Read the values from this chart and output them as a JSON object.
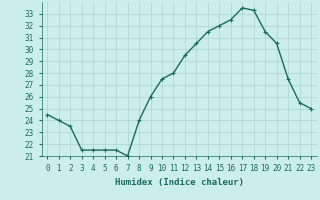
{
  "x": [
    0,
    1,
    2,
    3,
    4,
    5,
    6,
    7,
    8,
    9,
    10,
    11,
    12,
    13,
    14,
    15,
    16,
    17,
    18,
    19,
    20,
    21,
    22,
    23
  ],
  "y": [
    24.5,
    24.0,
    23.5,
    21.5,
    21.5,
    21.5,
    21.5,
    21.0,
    24.0,
    26.0,
    27.5,
    28.0,
    29.5,
    30.5,
    31.5,
    32.0,
    32.5,
    33.5,
    33.3,
    31.5,
    30.5,
    27.5,
    25.5,
    25.0
  ],
  "line_color": "#1a6b5e",
  "marker": "+",
  "bg_color": "#cceee8",
  "grid_color": "#aad4cc",
  "xlabel": "Humidex (Indice chaleur)",
  "ylim": [
    21,
    34
  ],
  "xlim": [
    -0.5,
    23.5
  ],
  "yticks": [
    21,
    22,
    23,
    24,
    25,
    26,
    27,
    28,
    29,
    30,
    31,
    32,
    33
  ],
  "xtick_labels": [
    "0",
    "1",
    "2",
    "3",
    "4",
    "5",
    "6",
    "7",
    "8",
    "9",
    "10",
    "11",
    "12",
    "13",
    "14",
    "15",
    "16",
    "17",
    "18",
    "19",
    "20",
    "21",
    "22",
    "23"
  ],
  "label_fontsize": 6.5,
  "tick_fontsize": 5.5,
  "line_width": 1.0,
  "marker_size": 3.5
}
